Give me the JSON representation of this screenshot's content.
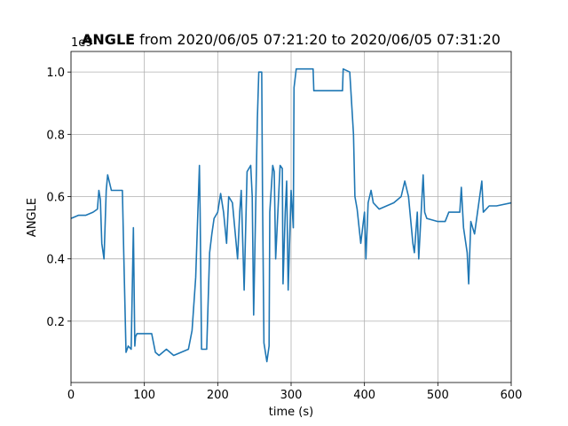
{
  "chart_data": {
    "type": "line",
    "title_bold": "ANGLE",
    "title": "from 2020/06/05 07:21:20 to 2020/06/05 07:31:20",
    "y_offset": "1e9",
    "xlabel": "time (s)",
    "ylabel": "ANGLE",
    "color": "#1f77b4",
    "grid": true,
    "xlim": [
      0,
      600
    ],
    "ylim": [
      0.003,
      1.066
    ],
    "xticks": [
      0,
      100,
      200,
      300,
      400,
      500,
      600
    ],
    "yticks": [
      0.2,
      0.4,
      0.6,
      0.8,
      {
        "value": 1,
        "label": "1.0"
      }
    ],
    "x": [
      0,
      10,
      20,
      30,
      36,
      38,
      40,
      42,
      45,
      48,
      50,
      55,
      60,
      70,
      72,
      75,
      78,
      82,
      85,
      87,
      88,
      90,
      100,
      110,
      115,
      120,
      130,
      140,
      150,
      160,
      165,
      170,
      175,
      176,
      178,
      185,
      189,
      192,
      195,
      200,
      204,
      208,
      212,
      215,
      220,
      227,
      230,
      232,
      236,
      240,
      245,
      247,
      249,
      254,
      256,
      260,
      261,
      263,
      267,
      270,
      271,
      275,
      277,
      279,
      285,
      288,
      289,
      292,
      294,
      296,
      300,
      303,
      304,
      307,
      330,
      331,
      350,
      370,
      371,
      380,
      385,
      387,
      390,
      395,
      400,
      402,
      405,
      409,
      412,
      420,
      440,
      450,
      455,
      460,
      466,
      468,
      472,
      474,
      480,
      482,
      485,
      500,
      510,
      515,
      530,
      532,
      535,
      540,
      542,
      545,
      550,
      560,
      562,
      570,
      580,
      600
    ],
    "values": [
      0.53,
      0.54,
      0.54,
      0.55,
      0.56,
      0.62,
      0.59,
      0.45,
      0.4,
      0.62,
      0.67,
      0.62,
      0.62,
      0.62,
      0.41,
      0.1,
      0.12,
      0.11,
      0.5,
      0.12,
      0.15,
      0.16,
      0.16,
      0.16,
      0.1,
      0.09,
      0.11,
      0.09,
      0.1,
      0.11,
      0.17,
      0.34,
      0.7,
      0.55,
      0.11,
      0.11,
      0.42,
      0.48,
      0.53,
      0.55,
      0.61,
      0.55,
      0.45,
      0.6,
      0.58,
      0.4,
      0.55,
      0.62,
      0.3,
      0.68,
      0.7,
      0.6,
      0.22,
      0.85,
      1.0,
      1.0,
      0.6,
      0.13,
      0.07,
      0.12,
      0.55,
      0.7,
      0.68,
      0.4,
      0.7,
      0.69,
      0.32,
      0.55,
      0.65,
      0.3,
      0.62,
      0.5,
      0.95,
      1.01,
      1.01,
      0.94,
      0.94,
      0.94,
      1.01,
      1.0,
      0.8,
      0.6,
      0.56,
      0.45,
      0.55,
      0.4,
      0.58,
      0.62,
      0.58,
      0.56,
      0.58,
      0.6,
      0.65,
      0.6,
      0.45,
      0.42,
      0.55,
      0.4,
      0.67,
      0.55,
      0.53,
      0.52,
      0.52,
      0.55,
      0.55,
      0.63,
      0.5,
      0.42,
      0.32,
      0.52,
      0.48,
      0.65,
      0.55,
      0.57,
      0.57,
      0.58
    ]
  }
}
